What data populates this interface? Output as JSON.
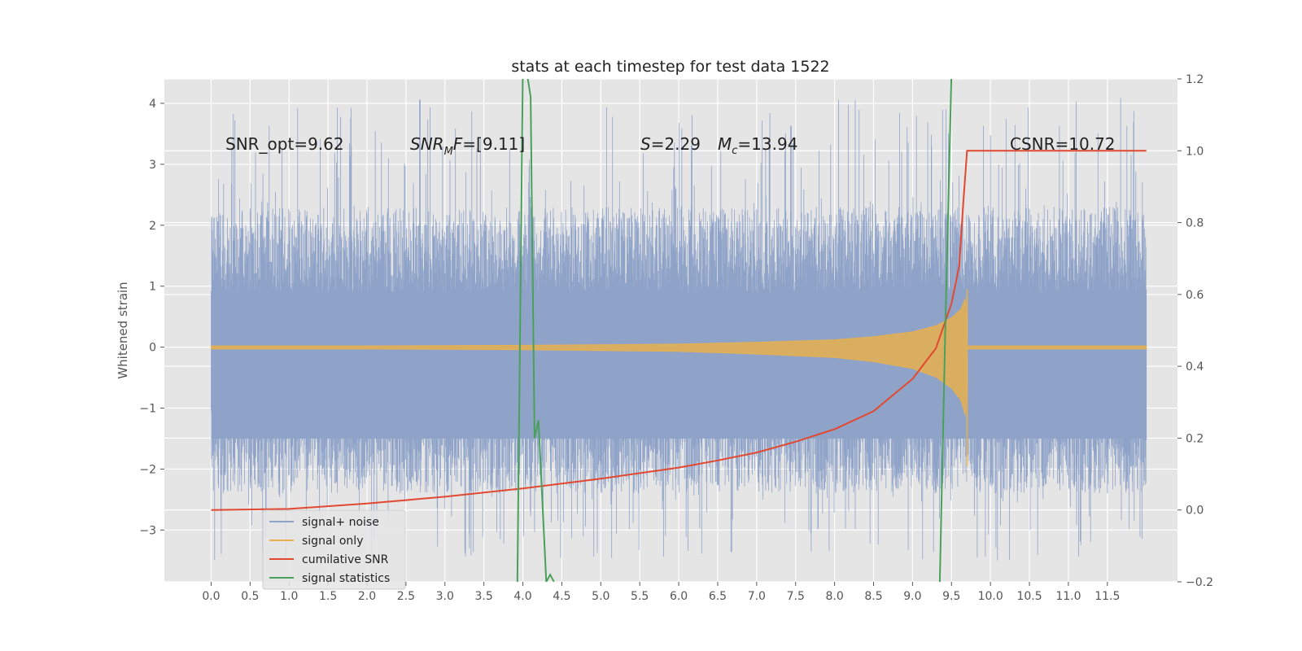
{
  "chart_data": {
    "type": "line",
    "title": "stats at each timestep for test data 1522",
    "xlabel": "",
    "ylabel": "Whitened strain",
    "y2label": "",
    "xlim": [
      -0.6,
      12.4
    ],
    "ylim": [
      -3.85,
      4.4
    ],
    "y2lim": [
      -0.2,
      1.2
    ],
    "grid": true,
    "legend_position": "lower-left",
    "x_ticks": [
      "0.0",
      "0.5",
      "1.0",
      "1.5",
      "2.0",
      "2.5",
      "3.0",
      "3.5",
      "4.0",
      "4.5",
      "5.0",
      "5.5",
      "6.0",
      "6.5",
      "7.0",
      "7.5",
      "8.0",
      "8.5",
      "9.0",
      "9.5",
      "10.0",
      "10.5",
      "11.0",
      "11.5"
    ],
    "y_ticks": [
      "−3",
      "−2",
      "−1",
      "0",
      "1",
      "2",
      "3",
      "4"
    ],
    "y2_ticks": [
      "−0.2",
      "0.0",
      "0.2",
      "0.4",
      "0.6",
      "0.8",
      "1.0",
      "1.2"
    ],
    "annotations": {
      "snr_opt": "SNR_opt=9.62",
      "snr_mf_prefix": "SNR",
      "snr_mf_sub": "M",
      "snr_mf_mid": "F",
      "snr_mf_value": "=[9.11]",
      "s_symbol": "S",
      "s_value": "=2.29",
      "mc_symbol": "M",
      "mc_sub": "c",
      "mc_value": "=13.94",
      "csnr": "CSNR=10.72"
    },
    "colors": {
      "background": "#e5e5e5",
      "grid": "#ffffff",
      "noise": "#8fa3c9",
      "signal": "#e8b04e",
      "cumulative": "#e2482f",
      "statistics": "#4aa05a"
    },
    "series": [
      {
        "name": "signal+ noise",
        "axis": "left",
        "x_range": [
          0,
          12
        ],
        "envelope_upper": 2.3,
        "envelope_lower": -2.4,
        "peak_max": 4.1,
        "peak_min": -3.5
      },
      {
        "name": "signal only",
        "axis": "left",
        "x": [
          0,
          2,
          4,
          6,
          7,
          8,
          8.5,
          9,
          9.3,
          9.5,
          9.62,
          9.68,
          9.7,
          12
        ],
        "amplitude": [
          0.02,
          0.02,
          0.03,
          0.05,
          0.08,
          0.12,
          0.17,
          0.25,
          0.35,
          0.48,
          0.62,
          0.8,
          0.02,
          0.02
        ]
      },
      {
        "name": "cumilative SNR",
        "axis": "right",
        "x": [
          0,
          1,
          2,
          3,
          4,
          5,
          6,
          6.5,
          7,
          7.5,
          8,
          8.5,
          9,
          9.3,
          9.5,
          9.6,
          9.65,
          9.7,
          12
        ],
        "values": [
          0.0,
          0.003,
          0.018,
          0.037,
          0.06,
          0.087,
          0.118,
          0.138,
          0.16,
          0.19,
          0.225,
          0.275,
          0.365,
          0.45,
          0.575,
          0.68,
          0.85,
          1.0,
          1.0
        ]
      },
      {
        "name": "signal statistics",
        "axis": "right",
        "x": [
          3.93,
          4.0,
          4.05,
          4.1,
          4.15,
          4.2,
          4.3,
          4.35,
          4.4
        ],
        "values": [
          -0.2,
          1.22,
          1.22,
          1.15,
          0.2,
          0.25,
          -0.2,
          -0.18,
          -0.2
        ],
        "x2": [
          9.35,
          9.42,
          9.5
        ],
        "values2": [
          -0.2,
          0.5,
          1.22
        ]
      }
    ]
  }
}
